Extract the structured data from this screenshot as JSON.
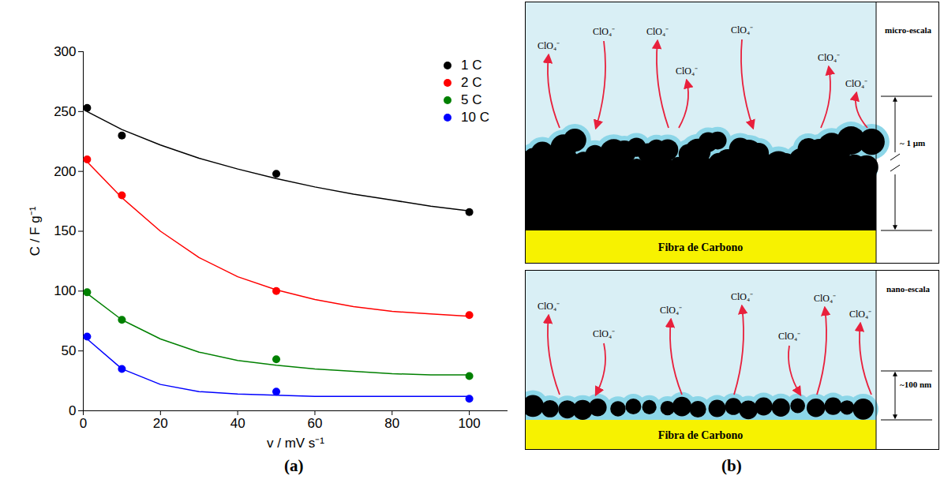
{
  "chart_data": {
    "type": "scatter",
    "x_label": "v / mV s⁻¹",
    "y_label": "C / F g⁻¹",
    "x": [
      1,
      10,
      50,
      100
    ],
    "fit_x": [
      1,
      10,
      20,
      30,
      40,
      50,
      60,
      70,
      80,
      90,
      100
    ],
    "series": [
      {
        "name": "1 C",
        "color": "#000000",
        "values": [
          253,
          230,
          198,
          166
        ],
        "fit": [
          250,
          235,
          222,
          211,
          202,
          194,
          187,
          181,
          176,
          171,
          167
        ]
      },
      {
        "name": "2 C",
        "color": "#ff0000",
        "values": [
          210,
          180,
          100,
          80
        ],
        "fit": [
          208,
          178,
          150,
          128,
          112,
          101,
          93,
          87,
          83,
          81,
          79
        ]
      },
      {
        "name": "5 C",
        "color": "#008000",
        "values": [
          99,
          76,
          43,
          29
        ],
        "fit": [
          98,
          76,
          60,
          49,
          42,
          38,
          35,
          33,
          31,
          30,
          30
        ]
      },
      {
        "name": "10 C",
        "color": "#0000ff",
        "values": [
          62,
          35,
          16,
          10
        ],
        "fit": [
          60,
          35,
          22,
          16,
          14,
          13,
          12,
          12,
          12,
          12,
          12
        ]
      }
    ],
    "xlim": [
      0,
      110
    ],
    "xticks": [
      0,
      20,
      40,
      60,
      80,
      100
    ],
    "ylim": [
      0,
      300
    ],
    "yticks": [
      0,
      50,
      100,
      150,
      200,
      250,
      300
    ],
    "legend": "top-right",
    "marker": "circle",
    "line_style": "solid"
  },
  "diagram": {
    "panels": [
      {
        "scale_label": "micro-escala",
        "thickness_label": "~ 1 µm",
        "substrate_label": "Fibra de Carbono",
        "ion_labels": [
          "ClO₄⁻",
          "ClO₄⁻",
          "ClO₄⁻",
          "ClO₄⁻",
          "ClO₄⁻",
          "ClO₄⁻",
          "ClO₄⁻"
        ]
      },
      {
        "scale_label": "nano-escala",
        "thickness_label": "~100 nm",
        "substrate_label": "Fibra de Carbono",
        "ion_labels": [
          "ClO₄⁻",
          "ClO₄⁻",
          "ClO₄⁻",
          "ClO₄⁻",
          "ClO₄⁻",
          "ClO₄⁻",
          "ClO₄⁻"
        ]
      }
    ]
  },
  "panel_labels": [
    "(a)",
    "(b)"
  ]
}
